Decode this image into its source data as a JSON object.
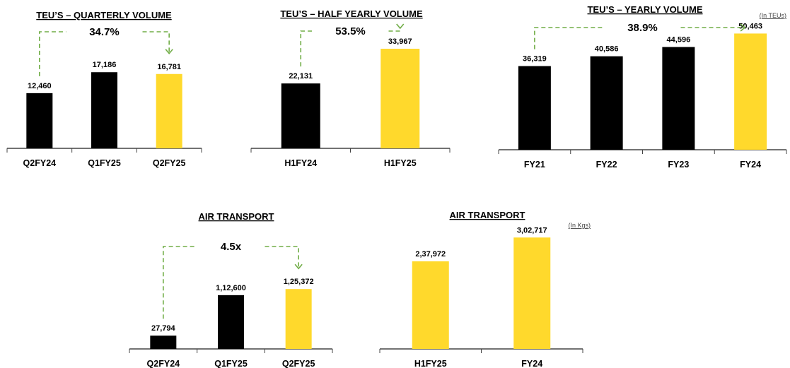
{
  "chart_data": [
    {
      "type": "bar",
      "title": "TEU’S –  QUARTERLY  VOLUME",
      "unit_note": "",
      "categories": [
        "Q2FY24",
        "Q1FY25",
        "Q2FY25"
      ],
      "values": [
        12460,
        17186,
        16781
      ],
      "value_labels": [
        "12,460",
        "17,186",
        "16,781"
      ],
      "bar_colors": [
        "#000000",
        "#000000",
        "#FFD92C"
      ],
      "ylim": [
        0,
        26000
      ],
      "grid": false,
      "growth": {
        "label": "34.7%",
        "from": 0,
        "to": 2
      }
    },
    {
      "type": "bar",
      "title": "TEU’S –  HALF YEARLY  VOLUME",
      "unit_note": "",
      "categories": [
        "H1FY24",
        "H1FY25"
      ],
      "values": [
        22131,
        33967
      ],
      "value_labels": [
        "22,131",
        "33,967"
      ],
      "bar_colors": [
        "#000000",
        "#FFD92C"
      ],
      "ylim": [
        0,
        44000
      ],
      "grid": false,
      "growth": {
        "label": "53.5%",
        "from": 0,
        "to": 1
      }
    },
    {
      "type": "bar",
      "title": "TEU’S – YEARLY VOLUME",
      "unit_note": "(In TEUs)",
      "categories": [
        "FY21",
        "FY22",
        "FY23",
        "FY24"
      ],
      "values": [
        36319,
        40586,
        44596,
        50463
      ],
      "value_labels": [
        "36,319",
        "40,586",
        "44,596",
        "50,463"
      ],
      "bar_colors": [
        "#000000",
        "#000000",
        "#000000",
        "#FFD92C"
      ],
      "ylim": [
        0,
        55000
      ],
      "grid": false,
      "growth": {
        "label": "38.9%",
        "from": 0,
        "to": 3
      }
    },
    {
      "type": "bar",
      "title": "AIR TRANSPORT",
      "unit_note": "",
      "categories": [
        "Q2FY24",
        "Q1FY25",
        "Q2FY25"
      ],
      "values": [
        27794,
        112600,
        125372
      ],
      "value_labels": [
        "27,794",
        "1,12,600",
        "1,25,372"
      ],
      "bar_colors": [
        "#000000",
        "#000000",
        "#FFD92C"
      ],
      "ylim": [
        0,
        180000
      ],
      "grid": false,
      "growth": {
        "label": "4.5x",
        "from": 0,
        "to": 2
      }
    },
    {
      "type": "bar",
      "title": "AIR TRANSPORT",
      "unit_note": "(In Kgs)",
      "categories": [
        "H1FY25",
        "FY24"
      ],
      "values": [
        237972,
        302717
      ],
      "value_labels": [
        "2,37,972",
        "3,02,717"
      ],
      "bar_colors": [
        "#FFD92C",
        "#FFD92C"
      ],
      "ylim": [
        0,
        340000
      ],
      "grid": false,
      "growth": null
    }
  ]
}
